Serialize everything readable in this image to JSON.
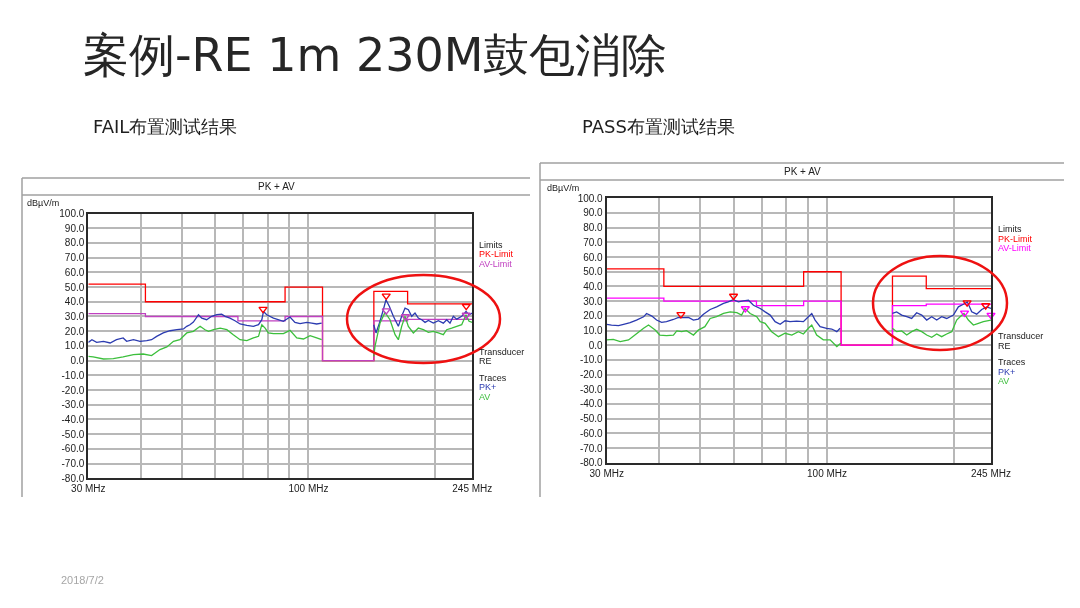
{
  "chart_data": [
    {
      "type": "line",
      "title": "FAIL布置测试结果",
      "subtitle": "PK + AV",
      "ylabel": "dBµV/m",
      "log": "x",
      "xlim": [
        30,
        245
      ],
      "xticks": [
        {
          "value": 30,
          "label": "30 MHz"
        },
        {
          "value": 40,
          "label": null
        },
        {
          "value": 50,
          "label": null
        },
        {
          "value": 60,
          "label": null
        },
        {
          "value": 70,
          "label": null
        },
        {
          "value": 80,
          "label": null
        },
        {
          "value": 90,
          "label": null
        },
        {
          "value": 100,
          "label": "100 MHz"
        },
        {
          "value": 200,
          "label": null
        },
        {
          "value": 245,
          "label": "245 MHz"
        }
      ],
      "ylim": [
        -80,
        100
      ],
      "yticks": [
        {
          "value": 100,
          "label": "100.0"
        },
        {
          "value": 90,
          "label": "90.0"
        },
        {
          "value": 80,
          "label": "80.0"
        },
        {
          "value": 70,
          "label": "70.0"
        },
        {
          "value": 60,
          "label": "60.0"
        },
        {
          "value": 50,
          "label": "50.0"
        },
        {
          "value": 40,
          "label": "40.0"
        },
        {
          "value": 30,
          "label": "30.0"
        },
        {
          "value": 20,
          "label": "20.0"
        },
        {
          "value": 10,
          "label": "10.0"
        },
        {
          "value": 0,
          "label": "0.0"
        },
        {
          "value": -10,
          "label": "-10.0"
        },
        {
          "value": -20,
          "label": "-20.0"
        },
        {
          "value": -30,
          "label": "-30.0"
        },
        {
          "value": -40,
          "label": "-40.0"
        },
        {
          "value": -50,
          "label": "-50.0"
        },
        {
          "value": -60,
          "label": "-60.0"
        },
        {
          "value": -70,
          "label": "-70.0"
        },
        {
          "value": -80,
          "label": "-80.0"
        }
      ],
      "grid": true,
      "legend": "right",
      "annotations": [
        "案例-RE 1m 230M鼓包消除",
        "2018/7/2",
        "Limits",
        "Transducer",
        "RE",
        "Traces"
      ],
      "series": [
        {
          "name": "PK-Limit",
          "type": "step",
          "color": "#ff0000",
          "x": [
            30,
            41,
            88,
            108,
            143,
            172,
            245
          ],
          "values": [
            52,
            40,
            50,
            0,
            47,
            38.5,
            38.5
          ]
        },
        {
          "name": "AV-Limit",
          "type": "step",
          "color": "#c040c0",
          "x": [
            30,
            41,
            68,
            88,
            108,
            143,
            172,
            245
          ],
          "values": [
            32,
            30,
            27,
            30,
            0,
            27,
            28,
            28
          ]
        },
        {
          "name": "PK+",
          "color": "#2b3bb0",
          "x": [
            30,
            30.6,
            31.4,
            32.6,
            33.8,
            35,
            36.3,
            37,
            38.4,
            39.8,
            41.3,
            42.4,
            43.6,
            45.2,
            46.9,
            48.7,
            50.5,
            51.4,
            52.3,
            53.3,
            54.8,
            55.8,
            57.3,
            58.9,
            60.6,
            62.2,
            63.4,
            65.1,
            66.9,
            68.8,
            71.4,
            74,
            76.1,
            77.5,
            78.2,
            79.6,
            82.6,
            87.2,
            90.4,
            92.9,
            95.5,
            99.1,
            101.8,
            104.6,
            107.5,
            125,
            142.9,
            144.7,
            147.4,
            150.6,
            152.8,
            155.7,
            159.1,
            163.5,
            166.5,
            169.6,
            172.7,
            175.9,
            179.1,
            182.4,
            185.8,
            189.2,
            192.7,
            198,
            203.5,
            209.1,
            213,
            216.9,
            220.9,
            225,
            231.2,
            236.7,
            240.7,
            245
          ],
          "values": [
            12.4,
            14.2,
            12.4,
            13.1,
            12,
            14.2,
            15.4,
            13.1,
            14.2,
            13.1,
            13.6,
            14.2,
            16.5,
            18.8,
            20.3,
            21,
            21.5,
            23.3,
            24.4,
            26.2,
            31.2,
            28.9,
            27.8,
            30.1,
            31.2,
            31.6,
            30.1,
            28.9,
            27.1,
            24.9,
            24,
            23.3,
            24.4,
            27.8,
            33.4,
            31.2,
            28.9,
            26.7,
            29.6,
            26,
            25.1,
            26,
            25.5,
            24.9,
            25.5,
            null,
            24.4,
            18.8,
            25.5,
            34.6,
            41.4,
            36.8,
            30.1,
            23.3,
            30.1,
            35.7,
            34.6,
            30.1,
            32.3,
            28.9,
            27.8,
            26,
            27.3,
            25.5,
            27.1,
            25.5,
            27.8,
            25.5,
            30.1,
            28.2,
            30.1,
            33.4,
            31.2,
            32.3
          ]
        },
        {
          "name": "AV",
          "color": "#3cbf3c",
          "x": [
            30,
            30.8,
            32.6,
            34.4,
            36.3,
            38.4,
            40.5,
            42.4,
            44.4,
            46.1,
            47.8,
            49.5,
            51.4,
            53.3,
            55.3,
            56.8,
            57.9,
            59.5,
            61.7,
            64,
            66.3,
            68.8,
            71.4,
            74,
            76.1,
            77.5,
            78.9,
            80.3,
            82.6,
            87.2,
            90.4,
            93.8,
            97.3,
            100.9,
            104.6,
            107.5,
            125,
            142.9,
            143.9,
            147.9,
            152,
            156.2,
            160.6,
            163.5,
            166.5,
            169.6,
            172.7,
            177.5,
            182.4,
            187.5,
            192.7,
            198,
            203.5,
            209.1,
            213,
            218.9,
            225,
            231.2,
            236.7,
            240.7,
            245
          ],
          "values": [
            2.9,
            2.5,
            1.1,
            1.4,
            2.5,
            4.1,
            4.5,
            3.4,
            7.5,
            9.3,
            13.1,
            14.2,
            18.8,
            19.9,
            23.3,
            21,
            19.9,
            21,
            22.1,
            21,
            17.6,
            14.2,
            13.6,
            15.4,
            16.5,
            24.4,
            22.1,
            18.8,
            18.3,
            18.3,
            20.6,
            15.4,
            14.7,
            17,
            15.4,
            14.2,
            null,
            2.9,
            9.7,
            25.5,
            32.8,
            27.8,
            17.6,
            14.2,
            23.3,
            30.1,
            23.3,
            18.8,
            22.1,
            21,
            19.2,
            19.9,
            18.8,
            17.6,
            21,
            22.1,
            23.3,
            24.4,
            31.2,
            26.7,
            26
          ]
        },
        {
          "type": "scatter",
          "marker": "triangle",
          "color": "#ff0000",
          "x": [
            78,
            153,
            237
          ],
          "values": [
            35,
            44,
            37
          ]
        },
        {
          "type": "scatter",
          "marker": "triangle",
          "color": "#c040c0",
          "x": [
            153,
            170,
            237
          ],
          "values": [
            34,
            30,
            31
          ]
        }
      ]
    },
    {
      "type": "line",
      "title": "PASS布置测试结果",
      "subtitle": "PK + AV",
      "ylabel": "dBµV/m",
      "log": "x",
      "xlim": [
        30,
        245
      ],
      "xticks": [
        {
          "value": 30,
          "label": "30 MHz"
        },
        {
          "value": 40,
          "label": null
        },
        {
          "value": 50,
          "label": null
        },
        {
          "value": 60,
          "label": null
        },
        {
          "value": 70,
          "label": null
        },
        {
          "value": 80,
          "label": null
        },
        {
          "value": 90,
          "label": null
        },
        {
          "value": 100,
          "label": "100 MHz"
        },
        {
          "value": 200,
          "label": null
        },
        {
          "value": 245,
          "label": "245 MHz"
        }
      ],
      "ylim": [
        -80,
        100
      ],
      "yticks": [
        {
          "value": 100,
          "label": "100.0"
        },
        {
          "value": 90,
          "label": "90.0"
        },
        {
          "value": 80,
          "label": "80.0"
        },
        {
          "value": 70,
          "label": "70.0"
        },
        {
          "value": 60,
          "label": "60.0"
        },
        {
          "value": 50,
          "label": "50.0"
        },
        {
          "value": 40,
          "label": "40.0"
        },
        {
          "value": 30,
          "label": "30.0"
        },
        {
          "value": 20,
          "label": "20.0"
        },
        {
          "value": 10,
          "label": "10.0"
        },
        {
          "value": 0,
          "label": "0.0"
        },
        {
          "value": -10,
          "label": "-10.0"
        },
        {
          "value": -20,
          "label": "-20.0"
        },
        {
          "value": -30,
          "label": "-30.0"
        },
        {
          "value": -40,
          "label": "-40.0"
        },
        {
          "value": -50,
          "label": "-50.0"
        },
        {
          "value": -60,
          "label": "-60.0"
        },
        {
          "value": -70,
          "label": "-70.0"
        },
        {
          "value": -80,
          "label": "-80.0"
        }
      ],
      "grid": true,
      "legend": "right",
      "annotations": [
        "Limits",
        "Transducer",
        "RE",
        "Traces"
      ],
      "series": [
        {
          "name": "PK-Limit",
          "type": "step",
          "color": "#ff0000",
          "x": [
            30,
            41,
            88,
            108,
            143,
            172,
            245
          ],
          "values": [
            52,
            40,
            50,
            0,
            47,
            38.5,
            38.5
          ]
        },
        {
          "name": "AV-Limit",
          "type": "step",
          "color": "#ff00ff",
          "x": [
            30,
            41,
            68,
            88,
            108,
            143,
            172,
            245
          ],
          "values": [
            32,
            30,
            27,
            30,
            0,
            27,
            28,
            28
          ]
        },
        {
          "name": "PK+",
          "color": "#2b3bb0",
          "x": [
            30,
            30.8,
            32,
            32.9,
            34.1,
            35.3,
            36.7,
            37.3,
            38.4,
            39.4,
            40.5,
            41.6,
            43.2,
            44.4,
            45.6,
            46.9,
            48.2,
            49.5,
            50.9,
            52.8,
            54.7,
            56.8,
            58.3,
            59.9,
            61.6,
            63.3,
            65.1,
            66.9,
            69.4,
            71.3,
            73.3,
            75.3,
            77.4,
            79.5,
            81.7,
            84.7,
            87.9,
            90.3,
            92,
            93.7,
            96.3,
            99.8,
            102.6,
            105.5,
            107.4,
            125,
            142.9,
            146.3,
            150.4,
            154.6,
            158.8,
            163.2,
            167.8,
            172.4,
            177.2,
            182.1,
            187.1,
            192.3,
            199.5,
            205,
            210.7,
            215.3,
            220.5,
            226.6,
            232.9,
            239.3,
            245
          ],
          "values": [
            14.2,
            13.7,
            13.3,
            14.2,
            15.3,
            17.1,
            19.3,
            21.6,
            19.8,
            17.1,
            15.5,
            16,
            17.5,
            18.9,
            18.7,
            18.9,
            17.1,
            17.8,
            21.1,
            24.3,
            26.1,
            28.4,
            29.5,
            31,
            29.5,
            30.2,
            30.6,
            27.2,
            25,
            22.7,
            20.5,
            16,
            14.2,
            16.6,
            16,
            16.4,
            16,
            19.4,
            21.6,
            17.1,
            12.6,
            11.5,
            11,
            9.2,
            11.5,
            null,
            21.6,
            22.7,
            20.5,
            19.4,
            18.2,
            22.1,
            20.5,
            17.1,
            19.4,
            17.1,
            19.4,
            18.2,
            20.5,
            26.1,
            27.9,
            29.5,
            22.7,
            21.1,
            24.3,
            26.1,
            25
          ]
        },
        {
          "name": "AV",
          "color": "#3cbf3c",
          "x": [
            30,
            31.1,
            32.3,
            33.8,
            35,
            36.7,
            37.7,
            39.1,
            40.1,
            41.6,
            43.2,
            44,
            45.2,
            46.4,
            48.2,
            49.5,
            51.3,
            52.8,
            54.7,
            56.8,
            58.9,
            61.1,
            62.7,
            63.9,
            65.7,
            68.1,
            69.4,
            71.3,
            73.9,
            76.7,
            79.5,
            82.5,
            85.5,
            87.9,
            90.3,
            92,
            94.5,
            98,
            101.7,
            105.5,
            107.8,
            125,
            142.9,
            146.3,
            150.4,
            154.6,
            158.8,
            163.2,
            167.8,
            172.4,
            177.2,
            182.1,
            187.1,
            192.3,
            197.7,
            203.1,
            206.9,
            211.4,
            216.5,
            222.5,
            228.7,
            235,
            245
          ],
          "values": [
            3.6,
            4,
            2.5,
            3.6,
            6.9,
            11.5,
            13.7,
            10.3,
            6.9,
            6.5,
            6.9,
            9.7,
            9.2,
            9.9,
            6.9,
            10.3,
            12.6,
            18.2,
            19.4,
            21.6,
            22.7,
            22.1,
            20.5,
            25,
            21.6,
            19.4,
            16,
            14.9,
            9.2,
            5.8,
            8.1,
            6.9,
            9.2,
            7.6,
            11.5,
            13.7,
            6.9,
            3.6,
            3.6,
            -0.9,
            1.3,
            null,
            11.5,
            9.2,
            9.7,
            6.9,
            9.2,
            10.8,
            9.2,
            6.9,
            5.4,
            7.6,
            5.8,
            7.6,
            9.2,
            17.1,
            19.4,
            21.6,
            17.1,
            13.7,
            14.9,
            16,
            17.1
          ]
        },
        {
          "type": "scatter",
          "marker": "triangle",
          "color": "#ff0000",
          "x": [
            45,
            60,
            215,
            238
          ],
          "values": [
            21,
            33.5,
            29,
            27
          ]
        },
        {
          "type": "scatter",
          "marker": "triangle",
          "color": "#ff00ff",
          "x": [
            64,
            212,
            245
          ],
          "values": [
            25,
            22,
            20.5
          ]
        }
      ]
    }
  ]
}
